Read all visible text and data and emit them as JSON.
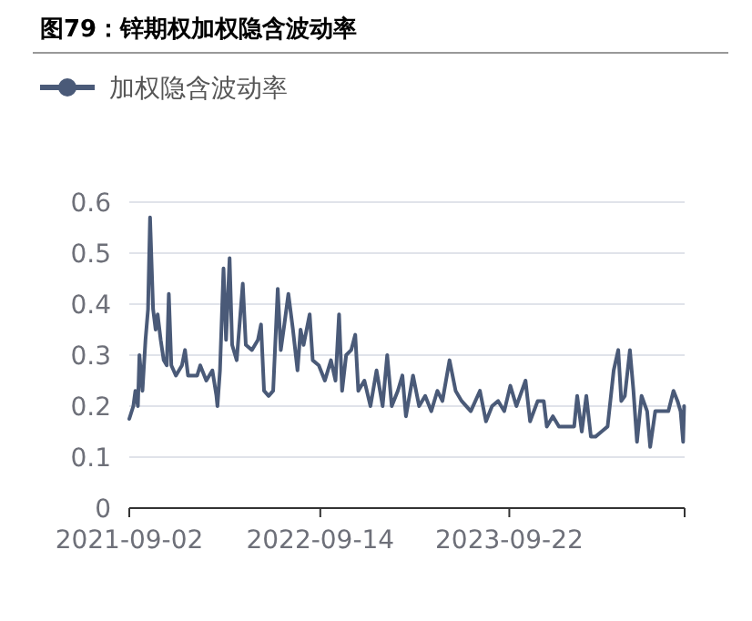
{
  "chart_data": {
    "type": "line",
    "title": "图79：锌期权加权隐含波动率",
    "x": [
      "2021-09-02",
      "2021-09-10",
      "2021-09-14",
      "2021-09-19",
      "2021-09-22",
      "2021-09-28",
      "2021-10-04",
      "2021-10-09",
      "2021-10-13",
      "2021-10-19",
      "2021-10-24",
      "2021-10-28",
      "2021-11-03",
      "2021-11-09",
      "2021-11-15",
      "2021-11-19",
      "2021-11-24",
      "2021-12-03",
      "2021-12-15",
      "2021-12-21",
      "2021-12-27",
      "2022-01-14",
      "2022-01-20",
      "2022-02-01",
      "2022-02-13",
      "2022-02-21",
      "2022-02-23",
      "2022-02-28",
      "2022-03-07",
      "2022-03-12",
      "2022-03-19",
      "2022-03-24",
      "2022-04-02",
      "2022-04-14",
      "2022-04-20",
      "2022-05-02",
      "2022-05-14",
      "2022-05-20",
      "2022-05-26",
      "2022-06-04",
      "2022-06-13",
      "2022-06-22",
      "2022-06-28",
      "2022-07-05",
      "2022-07-13",
      "2022-07-22",
      "2022-07-31",
      "2022-08-06",
      "2022-08-12",
      "2022-08-24",
      "2022-08-30",
      "2022-09-11",
      "2022-09-23",
      "2022-10-05",
      "2022-10-14",
      "2022-10-21",
      "2022-10-27",
      "2022-11-04",
      "2022-11-14",
      "2022-11-22",
      "2022-11-28",
      "2022-12-10",
      "2022-12-22",
      "2023-01-03",
      "2023-01-15",
      "2023-01-24",
      "2023-02-02",
      "2023-02-14",
      "2023-02-23",
      "2023-03-02",
      "2023-03-16",
      "2023-03-28",
      "2023-04-09",
      "2023-04-21",
      "2023-05-03",
      "2023-05-13",
      "2023-05-27",
      "2023-06-08",
      "2023-06-20",
      "2023-07-08",
      "2023-07-26",
      "2023-08-07",
      "2023-08-19",
      "2023-08-31",
      "2023-09-12",
      "2023-09-24",
      "2023-10-06",
      "2023-10-24",
      "2023-11-02",
      "2023-11-17",
      "2023-11-29",
      "2023-12-05",
      "2023-12-17",
      "2023-12-29",
      "2024-01-16",
      "2024-01-28",
      "2024-02-03",
      "2024-02-12",
      "2024-02-21",
      "2024-03-01",
      "2024-03-10",
      "2024-03-22",
      "2024-04-03",
      "2024-04-15",
      "2024-04-24",
      "2024-04-30",
      "2024-05-07",
      "2024-05-17",
      "2024-05-24",
      "2024-05-31",
      "2024-06-09",
      "2024-06-20",
      "2024-06-26",
      "2024-07-06",
      "2024-07-20",
      "2024-08-01",
      "2024-08-11",
      "2024-08-19",
      "2024-08-25",
      "2024-08-30",
      "2024-09-01"
    ],
    "series": [
      {
        "name": "加权隐含波动率",
        "color": "#4a5a78",
        "values": [
          0.175,
          0.2,
          0.23,
          0.2,
          0.3,
          0.23,
          0.33,
          0.39,
          0.57,
          0.39,
          0.35,
          0.38,
          0.33,
          0.29,
          0.28,
          0.42,
          0.28,
          0.26,
          0.28,
          0.31,
          0.26,
          0.26,
          0.28,
          0.25,
          0.27,
          0.22,
          0.2,
          0.27,
          0.47,
          0.33,
          0.49,
          0.32,
          0.29,
          0.44,
          0.32,
          0.31,
          0.33,
          0.36,
          0.23,
          0.22,
          0.23,
          0.43,
          0.31,
          0.36,
          0.42,
          0.35,
          0.27,
          0.35,
          0.32,
          0.38,
          0.29,
          0.28,
          0.25,
          0.29,
          0.25,
          0.38,
          0.23,
          0.3,
          0.31,
          0.34,
          0.23,
          0.25,
          0.2,
          0.27,
          0.2,
          0.3,
          0.2,
          0.23,
          0.26,
          0.18,
          0.26,
          0.2,
          0.22,
          0.19,
          0.23,
          0.21,
          0.29,
          0.23,
          0.21,
          0.19,
          0.23,
          0.17,
          0.2,
          0.21,
          0.19,
          0.24,
          0.2,
          0.25,
          0.17,
          0.21,
          0.21,
          0.16,
          0.18,
          0.16,
          0.16,
          0.16,
          0.22,
          0.15,
          0.22,
          0.14,
          0.14,
          0.15,
          0.16,
          0.27,
          0.31,
          0.21,
          0.22,
          0.31,
          0.23,
          0.13,
          0.22,
          0.19,
          0.12,
          0.19,
          0.19,
          0.19,
          0.23,
          0.21,
          0.19,
          0.13,
          0.2
        ]
      }
    ],
    "xlim": [
      "2021-09-02",
      "2024-09-02"
    ],
    "xticks": [
      "2021-09-02",
      "2022-09-14",
      "2023-09-22",
      {
        "value": "2024-09-02",
        "label": null
      }
    ],
    "ylim": [
      0,
      0.6
    ],
    "yticks": [
      0,
      0.1,
      0.2,
      0.3,
      0.4,
      0.5,
      0.6
    ],
    "grid": "y",
    "legend": "top left",
    "marker": "none",
    "line_style": "solid"
  }
}
